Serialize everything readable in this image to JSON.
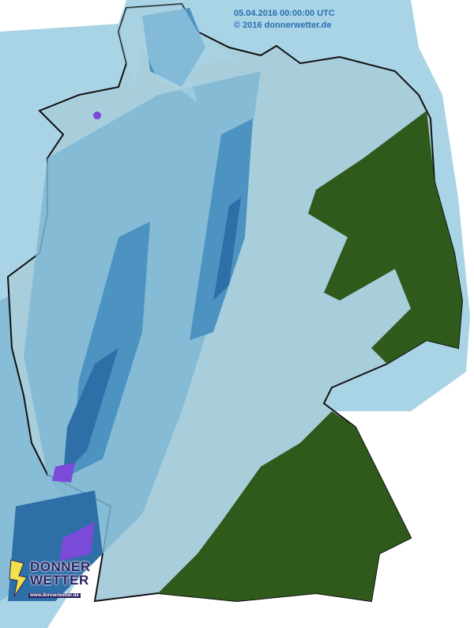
{
  "map": {
    "timestamp": "05.04.2016 00:00:00 UTC",
    "copyright": "© 2016 donnerwetter.de",
    "logo": {
      "line1": "DONNER",
      "line2": "WETTER",
      "url": "www.donnerwetter.de"
    },
    "colors": {
      "outside_light": "#a8d4e6",
      "land_base": "#a9cedb",
      "precip_light": "#7fb7d4",
      "precip_medium": "#4d93c2",
      "precip_heavy": "#2f6fa8",
      "precip_intense": "#7a4ad8",
      "forest_green": "#2f5a1c",
      "border": "#111111"
    }
  }
}
